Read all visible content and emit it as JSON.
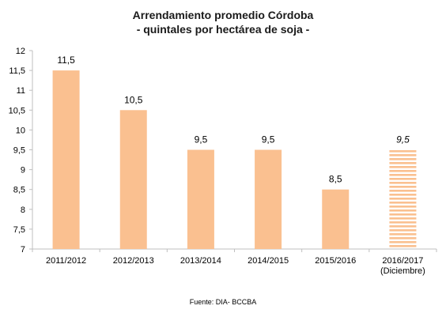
{
  "title_line1": "Arrendamiento promedio Córdoba",
  "title_line2": "-  quintales por hectárea de soja -",
  "source": "Fuente: DIA- BCCBA",
  "colors": {
    "bar": "#FAC090",
    "hatch": "#FAC090",
    "axis": "#BFBFBF"
  },
  "chart_data": {
    "type": "bar",
    "title": "Arrendamiento promedio Córdoba - quintales por hectárea de soja -",
    "categories": [
      "2011/2012",
      "2012/2013",
      "2013/2014",
      "2014/2015",
      "2015/2016",
      "2016/2017"
    ],
    "category_sublabels": [
      "",
      "",
      "",
      "",
      "",
      "(Diciembre)"
    ],
    "values": [
      11.5,
      10.5,
      9.5,
      9.5,
      8.5,
      9.5
    ],
    "value_labels": [
      "11,5",
      "10,5",
      "9,5",
      "9,5",
      "8,5",
      "9,5"
    ],
    "estimated": [
      false,
      false,
      false,
      false,
      false,
      true
    ],
    "ylim": [
      7,
      12
    ],
    "yticks": [
      7,
      7.5,
      8,
      8.5,
      9,
      9.5,
      10,
      10.5,
      11,
      11.5,
      12
    ],
    "ytick_labels": [
      "7",
      "7,5",
      "8",
      "8,5",
      "9",
      "9,5",
      "10",
      "10,5",
      "11",
      "11,5",
      "12"
    ],
    "grid": false,
    "xlabel": "",
    "ylabel": ""
  }
}
